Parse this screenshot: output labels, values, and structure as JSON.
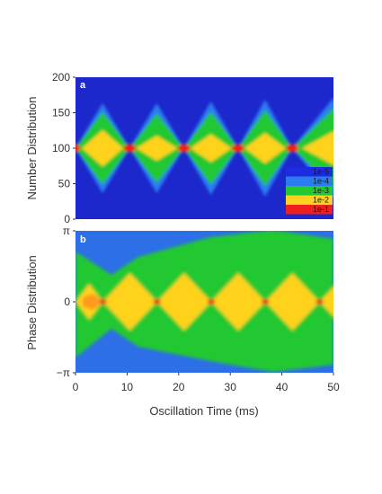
{
  "chart_data": [
    {
      "type": "heatmap",
      "panel_label": "a",
      "ylabel": "Number Distribution",
      "ylim": [
        0,
        200
      ],
      "yticks": [
        "0",
        "50",
        "100",
        "150",
        "200"
      ],
      "xlim": [
        0,
        50
      ],
      "center_value": 100,
      "focus_times": [
        0,
        10.5,
        21,
        31.5,
        42
      ],
      "color_scale": {
        "type": "log",
        "entries": [
          {
            "label": "1e-5",
            "color": "#1d2ce0"
          },
          {
            "label": "1e-4",
            "color": "#2a7cf0"
          },
          {
            "label": "1e-3",
            "color": "#22c832"
          },
          {
            "label": "1e-2",
            "color": "#ffd21e"
          },
          {
            "label": "1e-1",
            "color": "#ee1f1f"
          }
        ],
        "background": "#1c27cc"
      }
    },
    {
      "type": "heatmap",
      "panel_label": "b",
      "ylabel": "Phase Distribution",
      "ylim": [
        -3.14159,
        3.14159
      ],
      "yticks": [
        "−π",
        "0",
        "π"
      ],
      "xlim": [
        0,
        50
      ],
      "xticks": [
        "0",
        "10",
        "20",
        "30",
        "40",
        "50"
      ],
      "xlabel": "Oscillation Time (ms)",
      "center_value": 0,
      "focus_times": [
        5.3,
        15.8,
        26.3,
        36.8,
        47.3
      ],
      "background": "#2d6fe6"
    }
  ]
}
